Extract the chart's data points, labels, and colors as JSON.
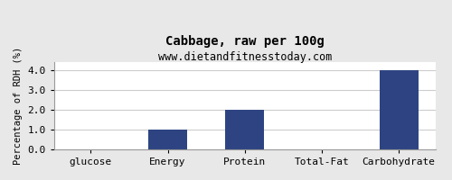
{
  "title": "Cabbage, raw per 100g",
  "subtitle": "www.dietandfitnesstoday.com",
  "categories": [
    "glucose",
    "Energy",
    "Protein",
    "Total-Fat",
    "Carbohydrate"
  ],
  "values": [
    0.0,
    1.0,
    2.0,
    0.0,
    4.0
  ],
  "bar_color": "#2e4482",
  "ylabel": "Percentage of RDH (%)",
  "ylim": [
    0,
    4.4
  ],
  "yticks": [
    0.0,
    1.0,
    2.0,
    3.0,
    4.0
  ],
  "fig_bg_color": "#e8e8e8",
  "plot_bg_color": "#ffffff",
  "title_fontsize": 10,
  "subtitle_fontsize": 8.5,
  "ylabel_fontsize": 7.5,
  "xlabel_fontsize": 8,
  "ytick_fontsize": 8,
  "grid_color": "#cccccc",
  "border_color": "#999999"
}
